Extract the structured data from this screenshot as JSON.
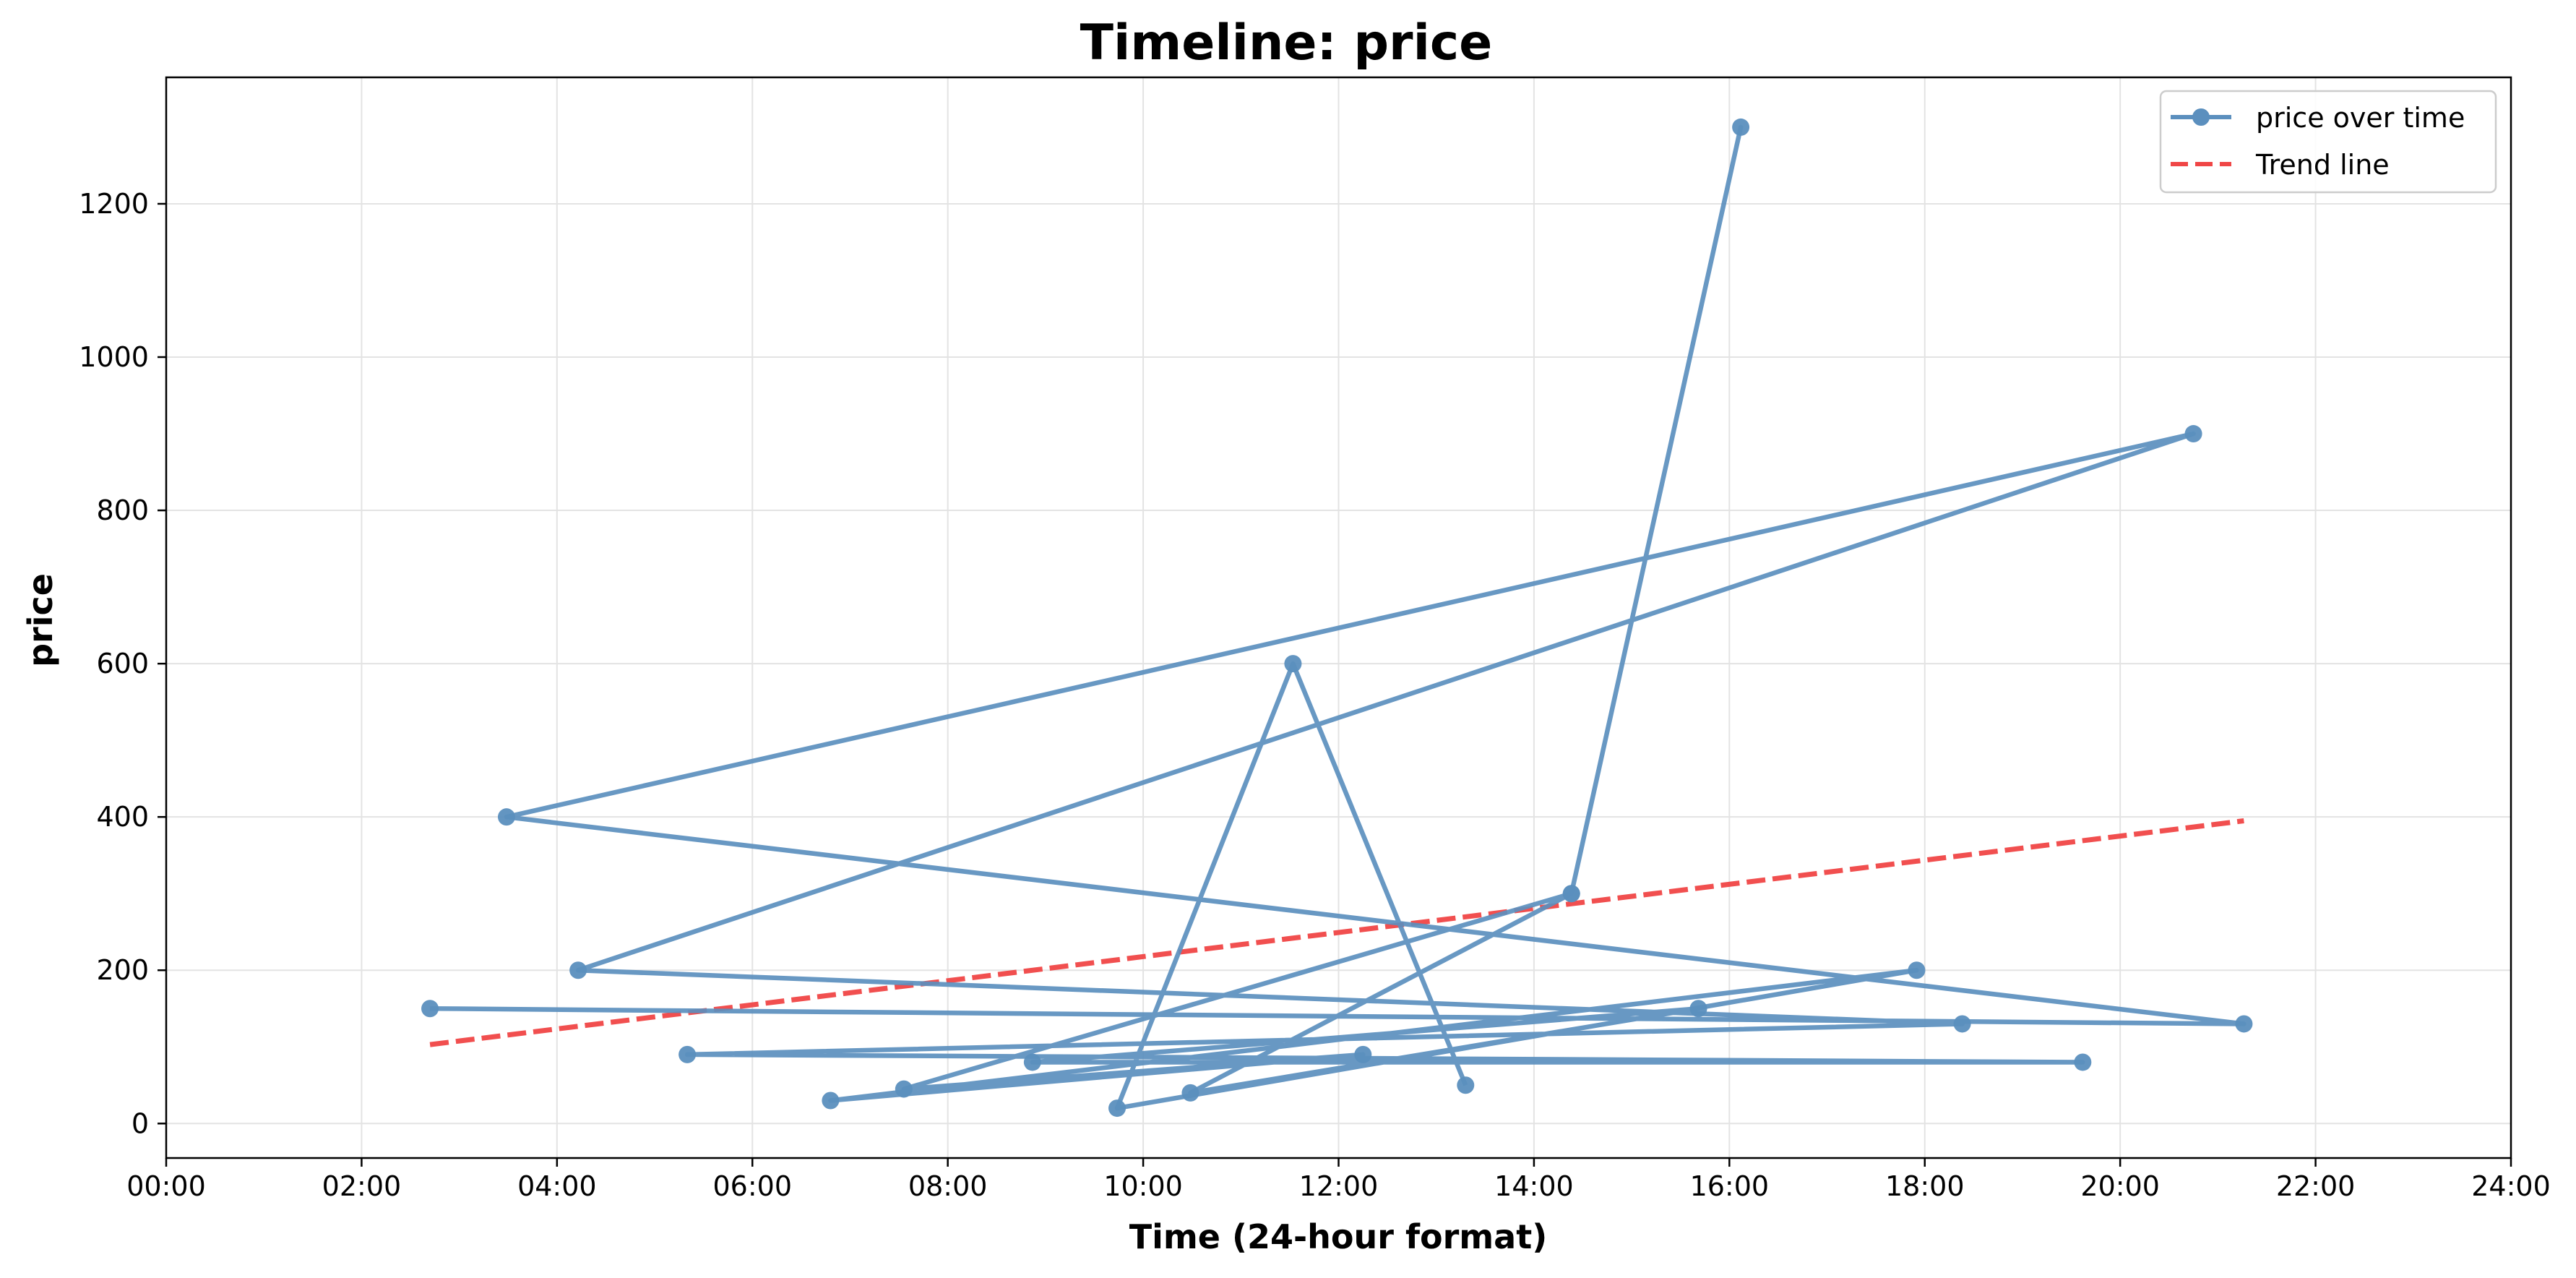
{
  "chart_data": {
    "type": "line",
    "title": "Timeline: price",
    "xlabel": "Time (24-hour format)",
    "ylabel": "price",
    "xlim_hours": [
      0,
      24
    ],
    "ylim": [
      -45,
      1365
    ],
    "x_ticks": [
      "00:00",
      "02:00",
      "04:00",
      "06:00",
      "08:00",
      "10:00",
      "12:00",
      "14:00",
      "16:00",
      "18:00",
      "20:00",
      "22:00",
      "24:00"
    ],
    "y_ticks": [
      0,
      200,
      400,
      600,
      800,
      1000,
      1200
    ],
    "grid": true,
    "legend_position": "top-right",
    "series": [
      {
        "name": "price over time",
        "color": "#5b8fbe",
        "style": "solid-with-markers",
        "points": [
          {
            "time": "02:42",
            "value": 150
          },
          {
            "time": "21:16",
            "value": 130
          },
          {
            "time": "03:29",
            "value": 400
          },
          {
            "time": "20:45",
            "value": 900
          },
          {
            "time": "04:13",
            "value": 200
          },
          {
            "time": "18:23",
            "value": 130
          },
          {
            "time": "05:20",
            "value": 90
          },
          {
            "time": "19:37",
            "value": 80
          },
          {
            "time": "08:52",
            "value": 80
          },
          {
            "time": "15:41",
            "value": 150
          },
          {
            "time": "10:29",
            "value": 40
          },
          {
            "time": "14:23",
            "value": 300
          },
          {
            "time": "16:07",
            "value": 1300
          },
          {
            "time": "14:23",
            "value": 300
          },
          {
            "time": "07:33",
            "value": 45
          },
          {
            "time": "12:15",
            "value": 90
          },
          {
            "time": "06:48",
            "value": 30
          },
          {
            "time": "17:55",
            "value": 200
          },
          {
            "time": "09:44",
            "value": 20
          },
          {
            "time": "11:32",
            "value": 600
          },
          {
            "time": "13:18",
            "value": 50
          }
        ]
      },
      {
        "name": "Trend line",
        "color": "#f04646",
        "style": "dashed",
        "points": [
          {
            "time": "02:42",
            "value": 103
          },
          {
            "time": "21:16",
            "value": 395
          }
        ]
      }
    ]
  }
}
